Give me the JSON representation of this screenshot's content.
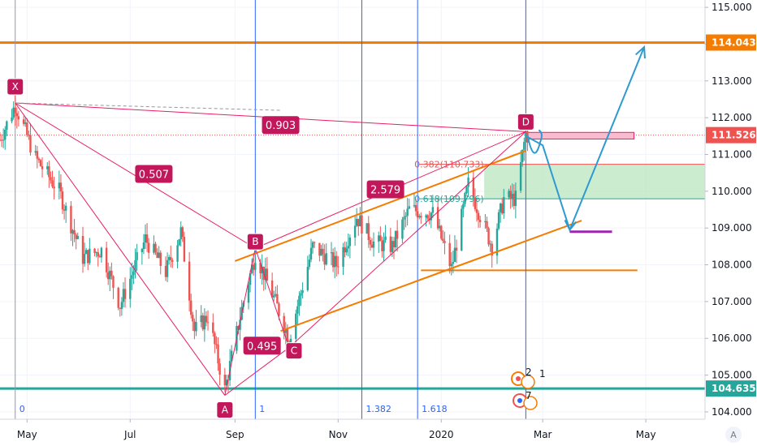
{
  "chart_data": {
    "type": "candlestick",
    "colors": {
      "up": "#26a69a",
      "down": "#ef5350",
      "pattern": "#c2185b",
      "pattern_fill": "#e91e63",
      "channel": "#f57c00",
      "resistance": "#f57c00",
      "support": "#26a69a",
      "projection": "#2e9ad0",
      "fib_vline": "#2962ff",
      "fib_zone": "#b9e6bd",
      "target": "#9c27b0",
      "current_price": "#ef5350"
    },
    "y_axis": {
      "min": 103.8,
      "max": 115.2,
      "ticks": [
        "104.000",
        "105.000",
        "106.000",
        "107.000",
        "108.000",
        "109.000",
        "110.000",
        "111.000",
        "112.000",
        "113.000",
        "114.000",
        "115.000"
      ]
    },
    "x_axis": {
      "start": "2019-04-15",
      "end": "2020-06-05",
      "ticks": [
        {
          "label": "May",
          "date": "2019-05-01"
        },
        {
          "label": "Jul",
          "date": "2019-07-01"
        },
        {
          "label": "Sep",
          "date": "2019-09-01"
        },
        {
          "label": "Nov",
          "date": "2019-11-01"
        },
        {
          "label": "2020",
          "date": "2020-01-01"
        },
        {
          "label": "Mar",
          "date": "2020-03-01"
        },
        {
          "label": "May",
          "date": "2020-05-01"
        }
      ]
    },
    "price_tags": [
      {
        "label": "114.043",
        "value": 114.043,
        "color": "#f57c00"
      },
      {
        "label": "111.526",
        "value": 111.526,
        "color": "#ef5350"
      },
      {
        "label": "104.635",
        "value": 104.635,
        "color": "#26a69a"
      }
    ],
    "horizontal_lines": [
      {
        "value": 114.043,
        "color": "#f57c00"
      },
      {
        "value": 104.635,
        "color": "#26a69a"
      }
    ],
    "harmonic_points": [
      {
        "label": "X",
        "date": "2019-04-24",
        "price": 112.4
      },
      {
        "label": "A",
        "date": "2019-08-26",
        "price": 104.45
      },
      {
        "label": "B",
        "date": "2019-09-13",
        "price": 108.45
      },
      {
        "label": "C",
        "date": "2019-10-03",
        "price": 105.75
      },
      {
        "label": "D",
        "date": "2020-02-20",
        "price": 111.62
      }
    ],
    "ratios": [
      {
        "label": "0.507",
        "date": "2019-07-15",
        "price": 110.47
      },
      {
        "label": "0.903",
        "date": "2019-09-28",
        "price": 111.8
      },
      {
        "label": "0.495",
        "date": "2019-09-17",
        "price": 105.8
      },
      {
        "label": "2.579",
        "date": "2019-11-29",
        "price": 110.05
      }
    ],
    "fib_vlines": [
      {
        "label": "0",
        "date": "2019-04-24"
      },
      {
        "label": "1",
        "date": "2019-09-13"
      },
      {
        "label": "1.382",
        "date": "2019-11-15"
      },
      {
        "label": "1.618",
        "date": "2019-12-18"
      },
      {
        "label": "",
        "date": "2020-02-20"
      }
    ],
    "fib_levels": [
      {
        "label": "0.382(110.733)",
        "value": 110.733,
        "color": "#ef5350"
      },
      {
        "label": "0.618(109.796)",
        "value": 109.796,
        "color": "#26a69a"
      }
    ],
    "support_line": {
      "value": 107.85,
      "start": "2019-12-20",
      "end": "2020-04-26"
    },
    "target_line": {
      "value": 108.9,
      "start": "2020-03-17",
      "end": "2020-04-11"
    },
    "d_zone": {
      "top": 111.6,
      "bottom": 111.42,
      "start": "2020-02-20",
      "end": "2020-04-24"
    },
    "channel": {
      "upper": [
        {
          "date": "2019-09-01",
          "price": 108.1
        },
        {
          "date": "2020-02-20",
          "price": 111.1
        }
      ],
      "lower": [
        {
          "date": "2019-09-28",
          "price": 106.2
        },
        {
          "date": "2020-03-24",
          "price": 109.2
        }
      ]
    },
    "projection": [
      {
        "date": "2020-02-20",
        "price": 111.5
      },
      {
        "date": "2020-03-01",
        "price": 111.25
      },
      {
        "date": "2020-03-17",
        "price": 108.95
      },
      {
        "date": "2020-04-30",
        "price": 113.92
      }
    ],
    "badge": "A",
    "event_counts": [
      "2",
      "1",
      "7"
    ]
  }
}
